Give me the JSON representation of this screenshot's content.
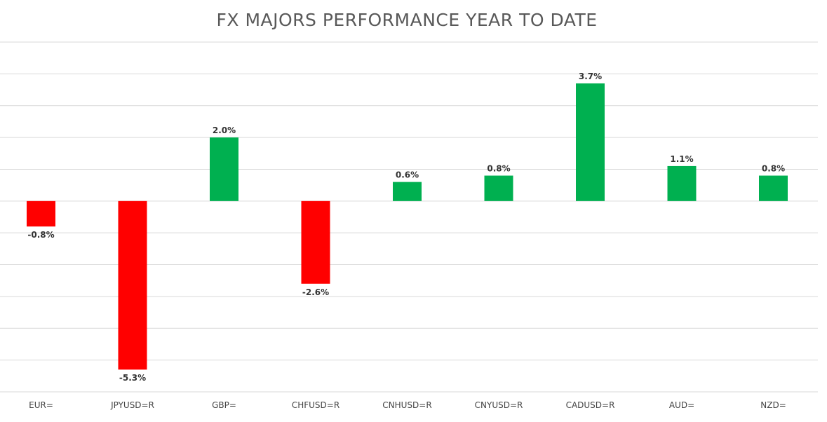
{
  "chart_data": {
    "type": "bar",
    "title": "FX MAJORS PERFORMANCE YEAR TO DATE",
    "categories": [
      "EUR=",
      "JPYUSD=R",
      "GBP=",
      "CHFUSD=R",
      "CNHUSD=R",
      "CNYUSD=R",
      "CADUSD=R",
      "AUD=",
      "NZD="
    ],
    "values": [
      -0.8,
      -5.3,
      2.0,
      -2.6,
      0.6,
      0.8,
      3.7,
      1.1,
      0.8
    ],
    "data_labels": [
      "-0.8%",
      "-5.3%",
      "2.0%",
      "-2.6%",
      "0.6%",
      "0.8%",
      "3.7%",
      "1.1%",
      "0.8%"
    ],
    "ylim": [
      -6,
      5
    ],
    "grid": true,
    "legend": "none",
    "colors": {
      "positive": "#00b050",
      "negative": "#ff0000",
      "grid": "#d9d9d9"
    }
  }
}
